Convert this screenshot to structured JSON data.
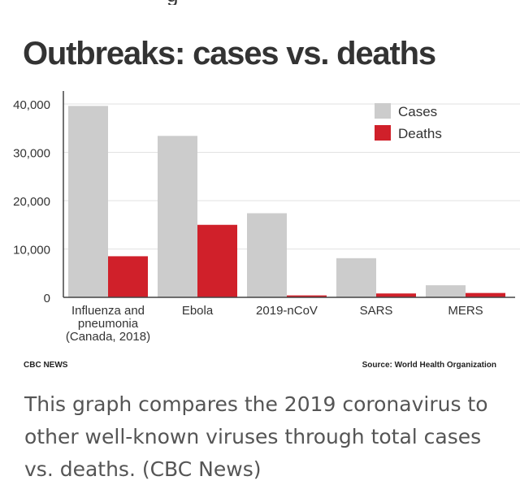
{
  "partial_top_text": "g",
  "credit": "CBC NEWS",
  "source": "Source: World Health Organization",
  "caption": "This graph compares the 2019 coronavirus to other well-known viruses through total cases vs. deaths. (CBC News)",
  "colors": {
    "cases": "#cccccc",
    "deaths": "#d0202a",
    "grid": "#e2e2e2",
    "axis": "#444444"
  },
  "chart_data": {
    "type": "bar",
    "title": "Outbreaks: cases vs. deaths",
    "categories": [
      [
        "Influenza and",
        "pneumonia",
        "(Canada, 2018)"
      ],
      [
        "Ebola"
      ],
      [
        "2019-nCoV"
      ],
      [
        "SARS"
      ],
      [
        "MERS"
      ]
    ],
    "series": [
      {
        "name": "Cases",
        "values": [
          39600,
          33400,
          17400,
          8100,
          2500
        ]
      },
      {
        "name": "Deaths",
        "values": [
          8500,
          15000,
          400,
          800,
          900
        ]
      }
    ],
    "ylim": [
      0,
      40000
    ],
    "yticks": [
      "0",
      "10,000",
      "20,000",
      "30,000",
      "40,000"
    ],
    "ytick_values": [
      0,
      10000,
      20000,
      30000,
      40000
    ],
    "grid": true,
    "legend_position": "top-right"
  }
}
